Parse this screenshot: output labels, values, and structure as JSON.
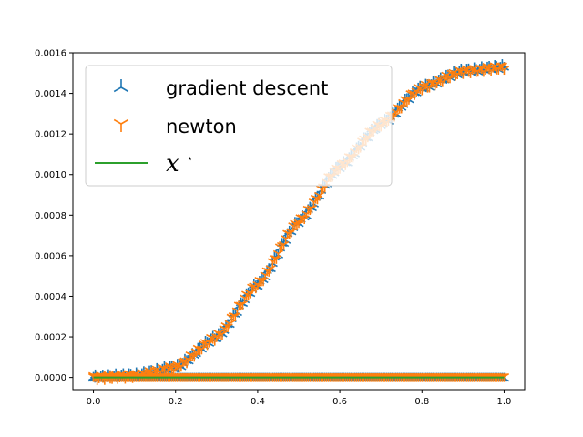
{
  "chart_data": {
    "type": "scatter",
    "title": "",
    "xlabel": "",
    "ylabel": "",
    "xlim": [
      -0.05,
      1.05
    ],
    "ylim": [
      -6e-05,
      0.0016
    ],
    "xticks": [
      0.0,
      0.2,
      0.4,
      0.6,
      0.8,
      1.0
    ],
    "xtick_labels": [
      "0.0",
      "0.2",
      "0.4",
      "0.6",
      "0.8",
      "1.0"
    ],
    "yticks": [
      0.0,
      0.0002,
      0.0004,
      0.0006,
      0.0008,
      0.001,
      0.0012,
      0.0014,
      0.0016
    ],
    "ytick_labels": [
      "0.0000",
      "0.0002",
      "0.0004",
      "0.0006",
      "0.0008",
      "0.0010",
      "0.0012",
      "0.0014",
      "0.0016"
    ],
    "grid": false,
    "legend_position": "upper-left",
    "series": [
      {
        "name": "gradient descent",
        "marker": "tri_down",
        "color": "#1f77b4",
        "curve_x": [
          0.0,
          0.1,
          0.2,
          0.3,
          0.4,
          0.5,
          0.6,
          0.7,
          0.8,
          0.9,
          1.0
        ],
        "curve_y": [
          0.0,
          1e-05,
          5e-05,
          0.0002,
          0.00046,
          0.00077,
          0.00104,
          0.00125,
          0.00143,
          0.00151,
          0.00153
        ],
        "baseline_y": 0.0
      },
      {
        "name": "newton",
        "marker": "tri_up",
        "color": "#ff7f0e",
        "curve_x": [
          0.0,
          0.1,
          0.2,
          0.3,
          0.4,
          0.5,
          0.6,
          0.7,
          0.8,
          0.9,
          1.0
        ],
        "curve_y": [
          0.0,
          1e-05,
          5e-05,
          0.0002,
          0.00046,
          0.00077,
          0.00104,
          0.00125,
          0.00143,
          0.00151,
          0.00153
        ],
        "baseline_y": 0.0
      },
      {
        "name": "x*",
        "marker": "line",
        "color": "#2ca02c",
        "x": [
          0.0,
          1.0
        ],
        "y": [
          0.0,
          0.0
        ]
      }
    ]
  }
}
